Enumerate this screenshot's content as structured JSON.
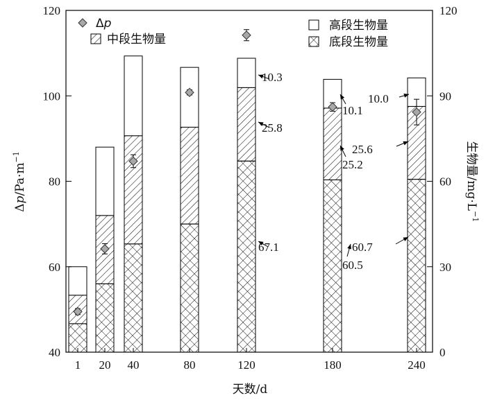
{
  "chart_data": {
    "type": "bar",
    "stacked": true,
    "xlabel": "天数/d",
    "categories": [
      "1",
      "20",
      "40",
      "80",
      "120",
      "180",
      "240"
    ],
    "x_positions": [
      1,
      20,
      40,
      80,
      120,
      180,
      240
    ],
    "y_left": {
      "label_prefix": "Δ",
      "label_var": "p",
      "label_rest": "/Pa·m",
      "label_sup": "−1",
      "ylim": [
        40,
        120
      ],
      "ticks": [
        "40",
        "60",
        "80",
        "100",
        "120"
      ]
    },
    "y_right": {
      "label": "生物量/mg·L",
      "label_sup": "−1",
      "ylim": [
        0,
        120
      ],
      "ticks": [
        "0",
        "30",
        "60",
        "90",
        "120"
      ]
    },
    "series": [
      {
        "name": "底段生物量",
        "pattern": "crosshatch",
        "values": [
          10,
          24,
          38,
          45,
          67.1,
          60.5,
          60.7
        ]
      },
      {
        "name": "中段生物量",
        "pattern": "diagonal",
        "values": [
          10,
          24,
          38,
          34,
          25.8,
          25.2,
          25.6
        ]
      },
      {
        "name": "高段生物量",
        "pattern": "none",
        "values": [
          10,
          24,
          28,
          21,
          10.3,
          10.1,
          10.0
        ]
      }
    ],
    "dp_series": {
      "name_prefix": "Δ",
      "name_var": "p",
      "values": [
        49.5,
        64.2,
        84.7,
        100.8,
        114.2,
        97.4,
        96.2
      ],
      "errors": [
        0.7,
        1.2,
        1.5,
        0.6,
        1.3,
        1.0,
        3.0
      ]
    },
    "annotations": [
      {
        "text": "10.3",
        "cat": 4
      },
      {
        "text": "25.8",
        "cat": 4
      },
      {
        "text": "67.1",
        "cat": 4
      },
      {
        "text": "10.1",
        "cat": 5
      },
      {
        "text": "25.2",
        "cat": 5
      },
      {
        "text": "60.5",
        "cat": 5
      },
      {
        "text": "10.0",
        "cat": 6
      },
      {
        "text": "25.6",
        "cat": 6
      },
      {
        "text": "60.7",
        "cat": 6
      }
    ],
    "legend": {
      "placement": "top"
    }
  }
}
